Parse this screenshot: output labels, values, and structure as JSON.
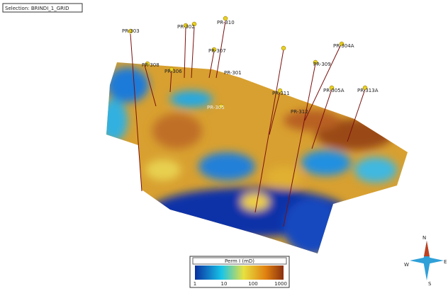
{
  "header": {
    "title": "Selection: BRINDI_1_GRID"
  },
  "wells": [
    "PR-303",
    "PR-308",
    "PR-302",
    "PR-310",
    "PR-307",
    "PR-306",
    "PR-301",
    "PR-304A",
    "PR-309",
    "PR-311",
    "PR-312",
    "PR-305A",
    "PR-313A",
    "PR-305"
  ],
  "legend": {
    "title": "Perm I (mD)",
    "ticks": [
      "1",
      "10",
      "100",
      "1000"
    ]
  },
  "compass": {
    "north": "N",
    "east": "E",
    "south": "S",
    "west": "W"
  }
}
